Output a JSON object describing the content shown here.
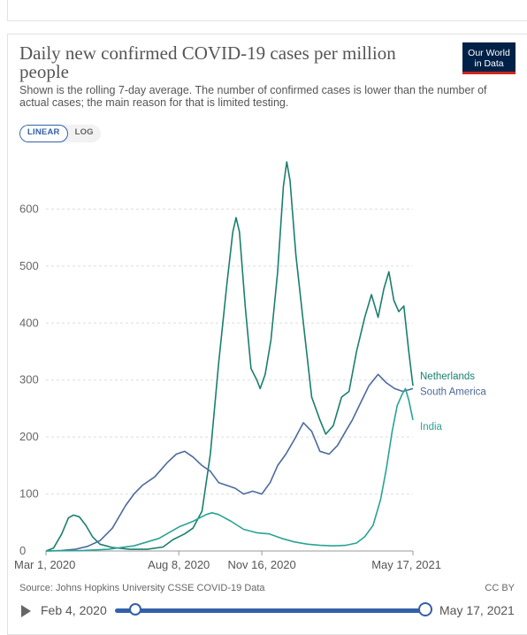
{
  "header": {
    "title": "Daily new confirmed COVID-19 cases per million people",
    "subtitle": "Shown is the rolling 7-day average. The number of confirmed cases is lower than the number of actual cases; the main reason for that is limited testing.",
    "logo_line1": "Our World",
    "logo_line2": "in Data"
  },
  "scale_toggle": {
    "linear_label": "LINEAR",
    "log_label": "LOG",
    "selected": "LINEAR"
  },
  "footer": {
    "source": "Source: Johns Hopkins University CSSE COVID-19 Data",
    "license": "CC BY"
  },
  "timeline": {
    "start_label": "Feb 4, 2020",
    "end_label": "May 17, 2021"
  },
  "colors": {
    "netherlands": "#1a7f6e",
    "south_america": "#4c6a9c",
    "india": "#2aa394",
    "grid": "#dddddd",
    "axis_text": "#666666"
  },
  "chart_data": {
    "type": "line",
    "title": "Daily new confirmed COVID-19 cases per million people",
    "xlabel": "",
    "ylabel": "",
    "xlim": [
      "2020-03-01",
      "2021-05-17"
    ],
    "ylim": [
      0,
      700
    ],
    "y_ticks": [
      0,
      100,
      200,
      300,
      400,
      500,
      600
    ],
    "x_ticks": [
      {
        "date": "2020-03-01",
        "label": "Mar 1, 2020"
      },
      {
        "date": "2020-08-08",
        "label": "Aug 8, 2020"
      },
      {
        "date": "2020-11-16",
        "label": "Nov 16, 2020"
      },
      {
        "date": "2021-05-17",
        "label": "May 17, 2021"
      }
    ],
    "grid": true,
    "series": [
      {
        "name": "Netherlands",
        "color_key": "netherlands",
        "points": [
          [
            "2020-03-01",
            0
          ],
          [
            "2020-03-10",
            5
          ],
          [
            "2020-03-20",
            30
          ],
          [
            "2020-03-28",
            58
          ],
          [
            "2020-04-03",
            63
          ],
          [
            "2020-04-10",
            60
          ],
          [
            "2020-04-18",
            45
          ],
          [
            "2020-04-26",
            25
          ],
          [
            "2020-05-05",
            12
          ],
          [
            "2020-05-20",
            6
          ],
          [
            "2020-06-10",
            3
          ],
          [
            "2020-07-01",
            3
          ],
          [
            "2020-07-20",
            7
          ],
          [
            "2020-08-01",
            20
          ],
          [
            "2020-08-15",
            30
          ],
          [
            "2020-08-25",
            40
          ],
          [
            "2020-09-05",
            70
          ],
          [
            "2020-09-15",
            170
          ],
          [
            "2020-09-25",
            330
          ],
          [
            "2020-10-05",
            470
          ],
          [
            "2020-10-12",
            560
          ],
          [
            "2020-10-16",
            585
          ],
          [
            "2020-10-20",
            560
          ],
          [
            "2020-10-27",
            430
          ],
          [
            "2020-11-03",
            320
          ],
          [
            "2020-11-10",
            300
          ],
          [
            "2020-11-14",
            285
          ],
          [
            "2020-11-20",
            310
          ],
          [
            "2020-11-27",
            370
          ],
          [
            "2020-12-05",
            490
          ],
          [
            "2020-12-12",
            640
          ],
          [
            "2020-12-16",
            683
          ],
          [
            "2020-12-20",
            650
          ],
          [
            "2020-12-27",
            520
          ],
          [
            "2021-01-05",
            400
          ],
          [
            "2021-01-15",
            270
          ],
          [
            "2021-01-25",
            230
          ],
          [
            "2021-02-01",
            205
          ],
          [
            "2021-02-10",
            220
          ],
          [
            "2021-02-20",
            270
          ],
          [
            "2021-03-01",
            280
          ],
          [
            "2021-03-10",
            350
          ],
          [
            "2021-03-20",
            410
          ],
          [
            "2021-03-28",
            450
          ],
          [
            "2021-04-05",
            410
          ],
          [
            "2021-04-12",
            460
          ],
          [
            "2021-04-18",
            490
          ],
          [
            "2021-04-24",
            440
          ],
          [
            "2021-04-30",
            420
          ],
          [
            "2021-05-06",
            430
          ],
          [
            "2021-05-12",
            350
          ],
          [
            "2021-05-17",
            290
          ]
        ]
      },
      {
        "name": "South America",
        "color_key": "south_america",
        "points": [
          [
            "2020-03-01",
            0
          ],
          [
            "2020-03-20",
            1
          ],
          [
            "2020-04-05",
            3
          ],
          [
            "2020-04-20",
            8
          ],
          [
            "2020-05-05",
            18
          ],
          [
            "2020-05-20",
            40
          ],
          [
            "2020-06-05",
            80
          ],
          [
            "2020-06-15",
            100
          ],
          [
            "2020-06-25",
            115
          ],
          [
            "2020-07-10",
            130
          ],
          [
            "2020-07-25",
            155
          ],
          [
            "2020-08-05",
            170
          ],
          [
            "2020-08-15",
            175
          ],
          [
            "2020-08-25",
            165
          ],
          [
            "2020-09-05",
            150
          ],
          [
            "2020-09-15",
            140
          ],
          [
            "2020-09-25",
            120
          ],
          [
            "2020-10-05",
            115
          ],
          [
            "2020-10-15",
            110
          ],
          [
            "2020-10-25",
            100
          ],
          [
            "2020-11-05",
            105
          ],
          [
            "2020-11-16",
            100
          ],
          [
            "2020-11-26",
            120
          ],
          [
            "2020-12-05",
            150
          ],
          [
            "2020-12-15",
            170
          ],
          [
            "2020-12-25",
            195
          ],
          [
            "2021-01-05",
            225
          ],
          [
            "2021-01-15",
            210
          ],
          [
            "2021-01-25",
            175
          ],
          [
            "2021-02-05",
            170
          ],
          [
            "2021-02-15",
            185
          ],
          [
            "2021-02-25",
            210
          ],
          [
            "2021-03-05",
            230
          ],
          [
            "2021-03-15",
            260
          ],
          [
            "2021-03-25",
            290
          ],
          [
            "2021-04-05",
            310
          ],
          [
            "2021-04-15",
            295
          ],
          [
            "2021-04-25",
            285
          ],
          [
            "2021-05-05",
            280
          ],
          [
            "2021-05-17",
            285
          ]
        ]
      },
      {
        "name": "India",
        "color_key": "india",
        "points": [
          [
            "2020-03-01",
            0
          ],
          [
            "2020-04-15",
            1
          ],
          [
            "2020-05-15",
            3
          ],
          [
            "2020-06-15",
            9
          ],
          [
            "2020-07-15",
            22
          ],
          [
            "2020-08-08",
            42
          ],
          [
            "2020-08-25",
            52
          ],
          [
            "2020-09-10",
            64
          ],
          [
            "2020-09-17",
            67
          ],
          [
            "2020-09-25",
            64
          ],
          [
            "2020-10-10",
            52
          ],
          [
            "2020-10-25",
            38
          ],
          [
            "2020-11-10",
            32
          ],
          [
            "2020-11-25",
            30
          ],
          [
            "2020-12-10",
            22
          ],
          [
            "2020-12-25",
            16
          ],
          [
            "2021-01-10",
            12
          ],
          [
            "2021-01-25",
            10
          ],
          [
            "2021-02-10",
            9
          ],
          [
            "2021-02-25",
            10
          ],
          [
            "2021-03-10",
            14
          ],
          [
            "2021-03-20",
            25
          ],
          [
            "2021-03-30",
            45
          ],
          [
            "2021-04-08",
            90
          ],
          [
            "2021-04-15",
            145
          ],
          [
            "2021-04-22",
            210
          ],
          [
            "2021-04-28",
            255
          ],
          [
            "2021-05-04",
            275
          ],
          [
            "2021-05-08",
            285
          ],
          [
            "2021-05-12",
            265
          ],
          [
            "2021-05-17",
            230
          ]
        ]
      }
    ]
  }
}
